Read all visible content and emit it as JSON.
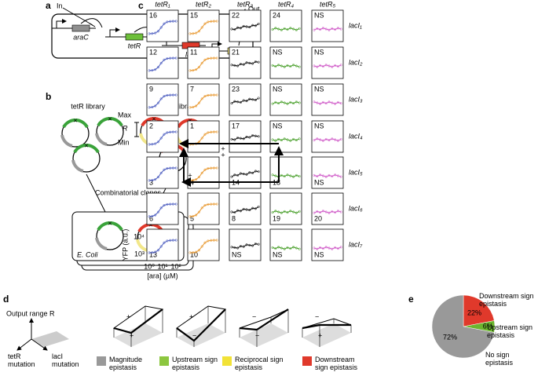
{
  "a": {
    "label": "a",
    "input": "In",
    "output": "Out",
    "genes": [
      "araC",
      "tetR",
      "lacI",
      "yfp"
    ]
  },
  "b": {
    "label": "b",
    "libraries": [
      "tetR library",
      "lacI library"
    ],
    "clones": "Combinatorial clones",
    "host": "E. Coli"
  },
  "c": {
    "label": "c",
    "columns": [
      "tetR₁",
      "tetR₂",
      "tetR₃",
      "tetR₄",
      "tetR₅"
    ],
    "rows": [
      "lacI₁",
      "lacI₂",
      "lacI₃",
      "lacI₄",
      "lacI₅",
      "lacI₆",
      "lacI₇"
    ],
    "cells": [
      [
        16,
        15,
        22,
        24,
        "NS"
      ],
      [
        12,
        11,
        21,
        "NS",
        "NS"
      ],
      [
        9,
        7,
        23,
        "NS",
        "NS"
      ],
      [
        2,
        1,
        17,
        "NS",
        "NS"
      ],
      [
        3,
        4,
        14,
        18,
        "NS"
      ],
      [
        6,
        5,
        8,
        19,
        20
      ],
      [
        13,
        10,
        "NS",
        "NS",
        "NS"
      ]
    ],
    "range_axis": {
      "max": "Max",
      "r": "R",
      "min": "Min"
    },
    "y_axis": {
      "label": "YFP (a.u.)",
      "ticks": [
        "10⁴",
        "10³"
      ]
    },
    "x_axis": {
      "label": "[ara] (µM)",
      "ticks": [
        "10⁰",
        "10¹",
        "10²"
      ]
    },
    "arrow_signs": [
      "+",
      "+",
      "+"
    ]
  },
  "d": {
    "label": "d",
    "axes": [
      "Output range R",
      "tetR mutation",
      "lacI mutation"
    ],
    "sketch_signs": [
      [
        "+",
        "+"
      ],
      [
        "+",
        "−"
      ],
      [
        "−",
        "−"
      ],
      [
        "−",
        "+"
      ]
    ],
    "legend": [
      {
        "name": "Magnitude epistasis",
        "color": "#999999"
      },
      {
        "name": "Upstream sign epistasis",
        "color": "#8cc63f"
      },
      {
        "name": "Reciprocal sign epistasis",
        "color": "#f2e237"
      },
      {
        "name": "Downstream sign epistasis",
        "color": "#e0392b"
      }
    ]
  },
  "e": {
    "label": "e",
    "type": "pie",
    "categories": [
      "Downstream sign epistasis",
      "Upstream sign epistasis",
      "No sign epistasis"
    ],
    "values": [
      22,
      6,
      72
    ],
    "value_labels": [
      "22%",
      "6%",
      "72%"
    ],
    "colors": [
      "#e0392b",
      "#6bb52e",
      "#999999"
    ]
  }
}
